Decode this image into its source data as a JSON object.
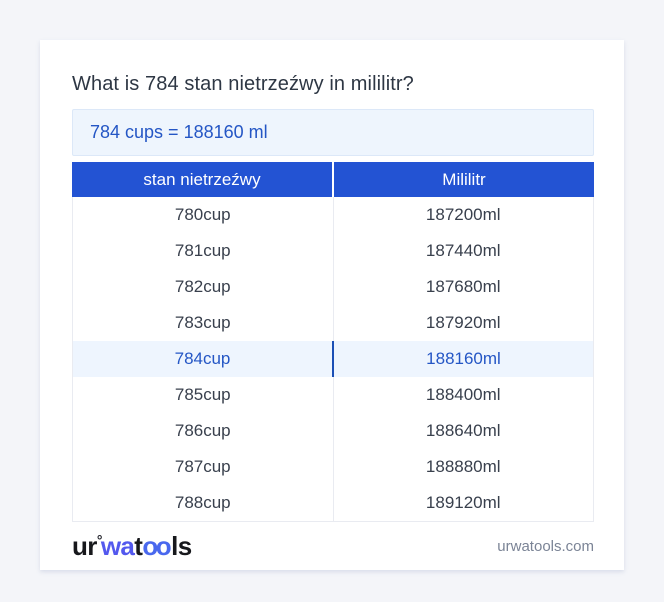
{
  "page_title": "What is 784 stan nietrzeźwy in mililitr?",
  "result_box": {
    "text": "784 cups = 188160 ml"
  },
  "table": {
    "headers": [
      "stan nietrzeźwy",
      "Mililitr"
    ],
    "rows": [
      {
        "cup": "780cup",
        "ml": "187200ml",
        "highlight": false
      },
      {
        "cup": "781cup",
        "ml": "187440ml",
        "highlight": false
      },
      {
        "cup": "782cup",
        "ml": "187680ml",
        "highlight": false
      },
      {
        "cup": "783cup",
        "ml": "187920ml",
        "highlight": false
      },
      {
        "cup": "784cup",
        "ml": "188160ml",
        "highlight": true
      },
      {
        "cup": "785cup",
        "ml": "188400ml",
        "highlight": false
      },
      {
        "cup": "786cup",
        "ml": "188640ml",
        "highlight": false
      },
      {
        "cup": "787cup",
        "ml": "188880ml",
        "highlight": false
      },
      {
        "cup": "788cup",
        "ml": "189120ml",
        "highlight": false
      }
    ]
  },
  "footer": {
    "logo": {
      "part1": "ur",
      "ring": "°",
      "part2": "wa",
      "part3": "t",
      "part4": "oo",
      "part5": "ls"
    },
    "domain": "urwatools.com"
  },
  "colors": {
    "page_bg": "#f4f5f9",
    "header_blue": "#2353d3",
    "accent_blue": "#2456c5",
    "highlight_row_bg": "#eef5fe",
    "highlight_divider_blue": "#1b4fb5",
    "result_box_bg": "#eef5fd",
    "result_box_border": "#dce8f8",
    "logo_blue": "#5358ee",
    "row_text": "#39404d",
    "footer_text_gray": "#7b8496"
  }
}
